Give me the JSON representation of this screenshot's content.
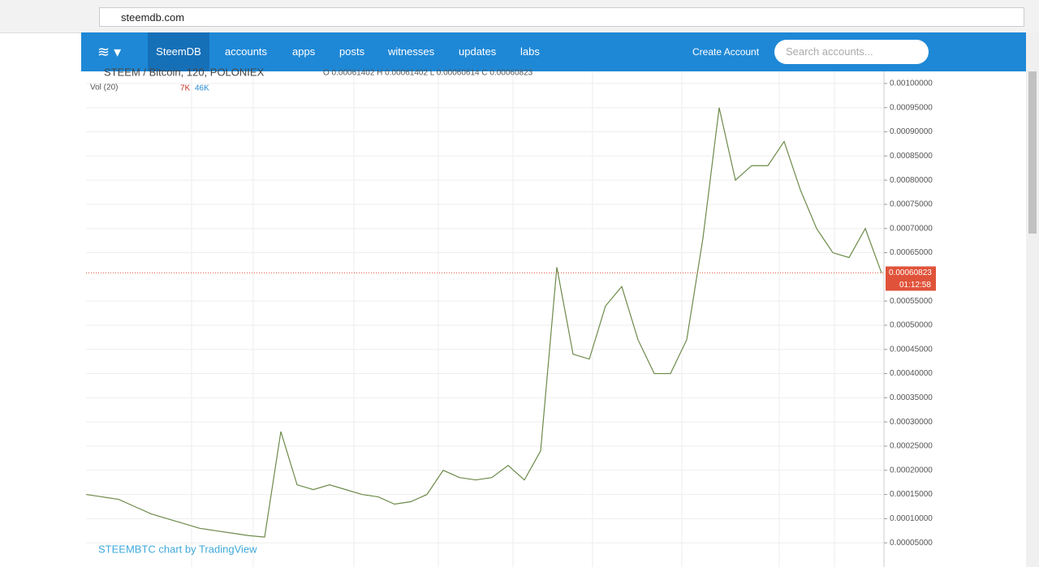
{
  "browser": {
    "url": "steemdb.com"
  },
  "nav": {
    "brand": "SteemDB",
    "links": [
      "accounts",
      "apps",
      "posts",
      "witnesses",
      "updates",
      "labs"
    ],
    "create": "Create Account",
    "search": "Search accounts..."
  },
  "chart": {
    "type": "line",
    "title": "STEEM / Bitcoin, 120, POLONIEX",
    "ohlc": "O 0.00061402  H 0.00061402  L 0.00060614  C 0.00060823",
    "volume_title": "Vol (20)",
    "volume_a": "7K",
    "volume_b": "46K",
    "last_label": "0.00060823",
    "countdown": "01:12:58",
    "watermark": "STEEMBTC chart by TradingView",
    "color": "#6d8a4a",
    "last_color": "#e0533a",
    "ylim": [
      0,
      0.001025
    ],
    "yticks": [
      {
        "value": 0.001,
        "label": "0.00100000"
      },
      {
        "value": 0.00095,
        "label": "0.00095000"
      },
      {
        "value": 0.0009,
        "label": "0.00090000"
      },
      {
        "value": 0.00085,
        "label": "0.00085000"
      },
      {
        "value": 0.0008,
        "label": "0.00080000"
      },
      {
        "value": 0.00075,
        "label": "0.00075000"
      },
      {
        "value": 0.0007,
        "label": "0.00070000"
      },
      {
        "value": 0.00065,
        "label": "0.00065000"
      },
      {
        "value": 0.00055,
        "label": "0.00055000"
      },
      {
        "value": 0.0005,
        "label": "0.00050000"
      },
      {
        "value": 0.00045,
        "label": "0.00045000"
      },
      {
        "value": 0.0004,
        "label": "0.00040000"
      },
      {
        "value": 0.00035,
        "label": "0.00035000"
      },
      {
        "value": 0.0003,
        "label": "0.00030000"
      },
      {
        "value": 0.00025,
        "label": "0.00025000"
      },
      {
        "value": 0.0002,
        "label": "0.00020000"
      },
      {
        "value": 0.00015,
        "label": "0.00015000"
      },
      {
        "value": 0.0001,
        "label": "0.00010000"
      },
      {
        "value": 5e-05,
        "label": "0.00005000"
      }
    ],
    "values": [
      0.00015,
      0.000145,
      0.00014,
      0.000125,
      0.00011,
      0.0001,
      9e-05,
      8e-05,
      7.5e-05,
      7e-05,
      6.5e-05,
      6.2e-05,
      0.00028,
      0.00017,
      0.00016,
      0.00017,
      0.00016,
      0.00015,
      0.000145,
      0.00013,
      0.000135,
      0.00015,
      0.0002,
      0.000185,
      0.00018,
      0.000185,
      0.00021,
      0.00018,
      0.00024,
      0.00062,
      0.00044,
      0.00043,
      0.00054,
      0.00058,
      0.00047,
      0.0004,
      0.0004,
      0.00047,
      0.00068,
      0.00095,
      0.0008,
      0.00083,
      0.00083,
      0.00088,
      0.00078,
      0.0007,
      0.00065,
      0.00064,
      0.0007,
      0.00060823
    ]
  }
}
